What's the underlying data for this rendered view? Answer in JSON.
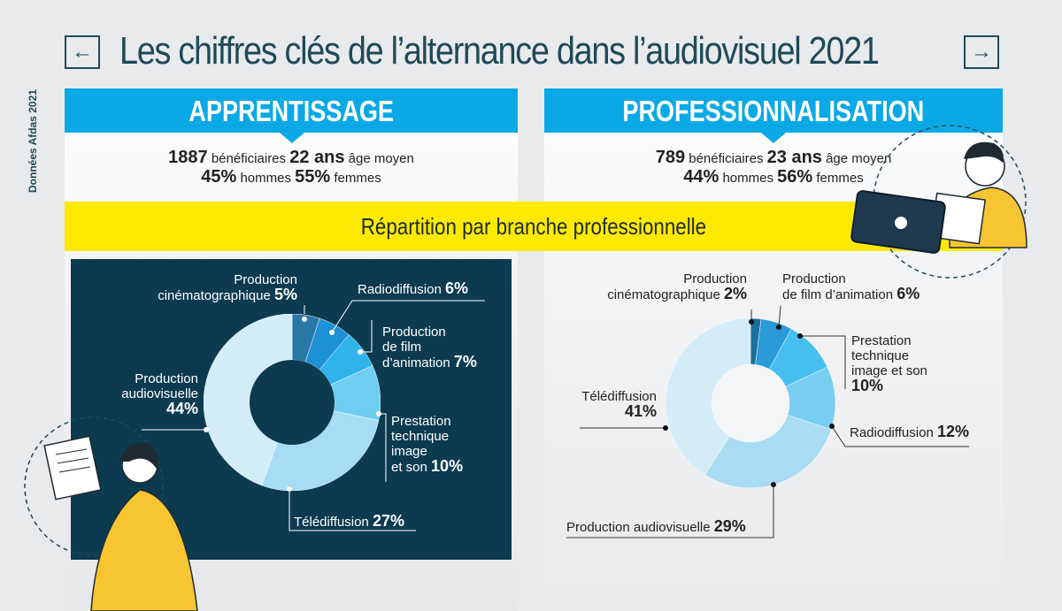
{
  "page": {
    "title": "Les chiffres clés de l’alternance dans l’audiovisuel 2021",
    "prev_icon": "arrow-left-icon",
    "next_icon": "arrow-right-icon",
    "side_note": "Données Afdas 2021",
    "band": "Répartition par branche professionnelle"
  },
  "colors": {
    "banner": "#0aa9e6",
    "yellow": "#fdea00",
    "dark": "#0c3b50",
    "title": "#1f4a58"
  },
  "apprentissage": {
    "heading": "APPRENTISSAGE",
    "beneficiaires": "1887",
    "beneficiaires_label": "bénéficiaires",
    "age": "22 ans",
    "age_label": "âge moyen",
    "hommes": "45%",
    "hommes_label": "hommes",
    "femmes": "55%",
    "femmes_label": "femmes"
  },
  "professionnalisation": {
    "heading": "PROFESSIONNALISATION",
    "beneficiaires": "789",
    "beneficiaires_label": "bénéficiaires",
    "age": "23 ans",
    "age_label": "âge moyen",
    "hommes": "44%",
    "hommes_label": "hommes",
    "femmes": "56%",
    "femmes_label": "femmes"
  },
  "chart_data": [
    {
      "type": "pie",
      "title": "APPRENTISSAGE",
      "categories": [
        "Production cinématographique",
        "Radiodiffusion",
        "Production de film d’animation",
        "Prestation technique image et son",
        "Télédiffusion",
        "Production audiovisuelle"
      ],
      "values": [
        5,
        6,
        7,
        10,
        27,
        44
      ],
      "value_labels": [
        "5%",
        "6%",
        "7%",
        "10%",
        "27%",
        "44%"
      ],
      "label_lines": [
        [
          "Production",
          "cinématographique"
        ],
        [
          "Radiodiffusion"
        ],
        [
          "Production",
          "de film",
          "d’animation"
        ],
        [
          "Prestation",
          "technique",
          "image",
          "et son"
        ],
        [
          "Télédiffusion"
        ],
        [
          "Production",
          "audiovisuelle"
        ]
      ],
      "colors": [
        "#2a78a8",
        "#1e90d6",
        "#2fb3ea",
        "#6fcdf2",
        "#a6dcf4",
        "#d3edf8"
      ]
    },
    {
      "type": "pie",
      "title": "PROFESSIONNALISATION",
      "categories": [
        "Production cinématographique",
        "Production de film d’animation",
        "Prestation technique image et son",
        "Radiodiffusion",
        "Production audiovisuelle",
        "Télédiffusion"
      ],
      "values": [
        2,
        6,
        10,
        12,
        29,
        41
      ],
      "value_labels": [
        "2%",
        "6%",
        "10%",
        "12%",
        "29%",
        "41%"
      ],
      "label_lines": [
        [
          "Production",
          "cinématographique"
        ],
        [
          "Production",
          "de film d’animation"
        ],
        [
          "Prestation",
          "technique",
          "image et son"
        ],
        [
          "Radiodiffusion"
        ],
        [
          "Production audiovisuelle"
        ],
        [
          "Télédiffusion"
        ]
      ],
      "colors": [
        "#1c6f9c",
        "#2a9ad9",
        "#47bfee",
        "#78cdf1",
        "#a9dcf3",
        "#d3ecf8"
      ]
    }
  ]
}
